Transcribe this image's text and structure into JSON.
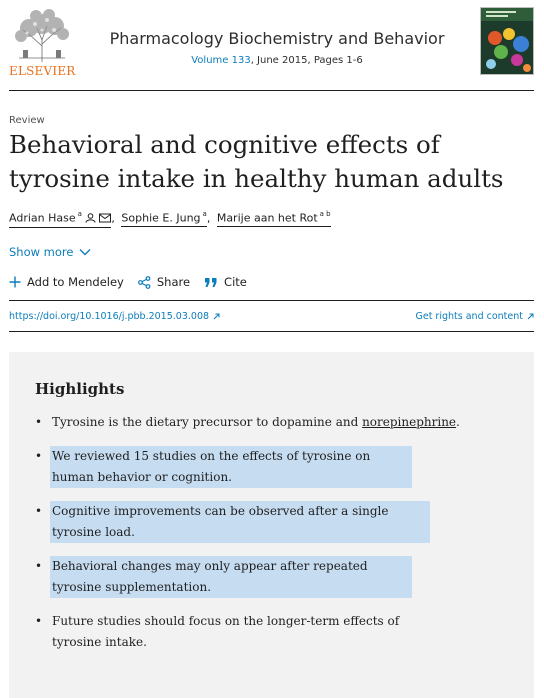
{
  "header": {
    "publisher": "ELSEVIER",
    "journal_title": "Pharmacology Biochemistry and Behavior",
    "volume_link": "Volume 133",
    "date_pages": ", June 2015, Pages 1-6"
  },
  "article": {
    "type": "Review",
    "title": "Behavioral and cognitive effects of tyrosine intake in healthy human adults",
    "authors": [
      {
        "name": "Adrian Hase",
        "aff": "a"
      },
      {
        "name": "Sophie E. Jung",
        "aff": "a"
      },
      {
        "name": "Marije aan het Rot",
        "aff": "a b"
      }
    ],
    "show_more": "Show more"
  },
  "actions": {
    "mendeley": "Add to Mendeley",
    "share": "Share",
    "cite": "Cite"
  },
  "links": {
    "doi": "https://doi.org/10.1016/j.pbb.2015.03.008",
    "rights": "Get rights and content"
  },
  "highlights": {
    "heading": "Highlights",
    "items": [
      {
        "pre": "Tyrosine is the dietary precursor to dopamine and ",
        "link": "norepinephrine",
        "post": "."
      },
      {
        "text": "We reviewed 15 studies on the effects of tyrosine on human behavior or cognition."
      },
      {
        "text": "Cognitive improvements can be observed after a single tyrosine load."
      },
      {
        "text": "Behavioral changes may only appear after repeated tyrosine supplementation."
      },
      {
        "text": "Future studies should focus on the longer-term effects of tyrosine intake."
      }
    ]
  },
  "colors": {
    "accent": "#0c7dbb",
    "elsevier_orange": "#e9711c",
    "selection": "#c6dcf1"
  }
}
